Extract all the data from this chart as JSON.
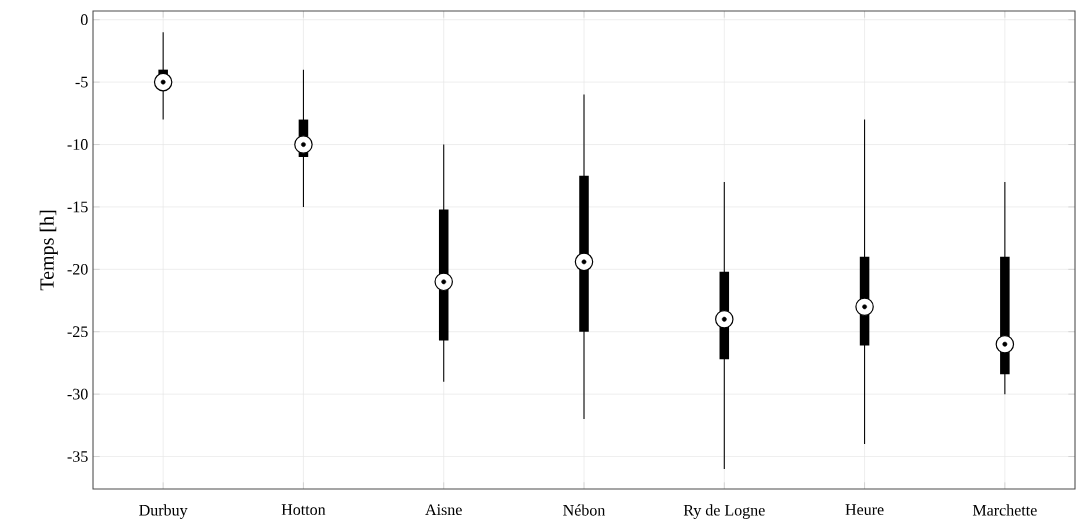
{
  "chart_data": {
    "type": "box",
    "ylabel": "Temps [h]",
    "categories": [
      "Durbuy",
      "Hotton",
      "Aisne",
      "Nébon",
      "Ry de Logne",
      "Heure",
      "Marchette"
    ],
    "ylim": [
      -37.6,
      0.7
    ],
    "yticks": [
      0,
      -5,
      -10,
      -15,
      -20,
      -25,
      -30,
      -35
    ],
    "grid": true,
    "series": [
      {
        "color": "#000000",
        "boxes": [
          {
            "low": -8,
            "q1": -5.5,
            "median": -5,
            "q3": -4,
            "high": -1
          },
          {
            "low": -15,
            "q1": -11,
            "median": -10,
            "q3": -8,
            "high": -4
          },
          {
            "low": -29,
            "q1": -25.7,
            "median": -21,
            "q3": -15.2,
            "high": -10
          },
          {
            "low": -32,
            "q1": -25,
            "median": -19.4,
            "q3": -12.5,
            "high": -6
          },
          {
            "low": -36,
            "q1": -27.2,
            "median": -24,
            "q3": -20.2,
            "high": -13
          },
          {
            "low": -34,
            "q1": -26.1,
            "median": -23,
            "q3": -19,
            "high": -8
          },
          {
            "low": -30,
            "q1": -28.4,
            "median": -26,
            "q3": -19,
            "high": -13
          }
        ]
      }
    ]
  }
}
